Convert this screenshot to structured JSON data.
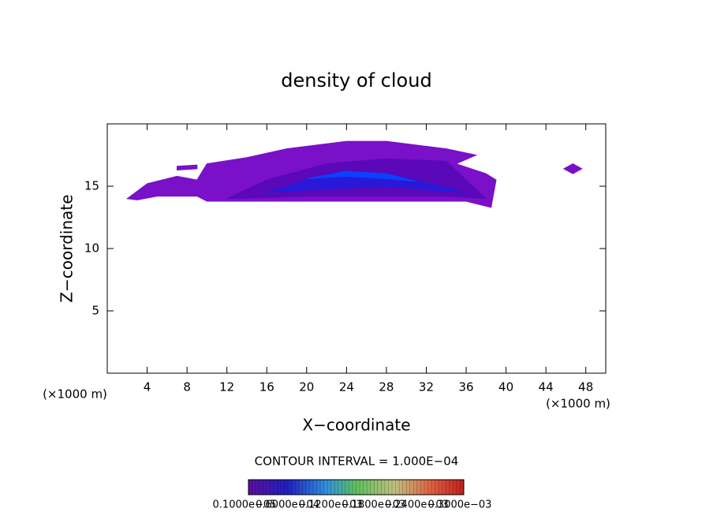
{
  "chart_data": {
    "type": "contour",
    "title": "density of cloud",
    "xlabel": "X−coordinate",
    "ylabel": "Z−coordinate",
    "x_unit_left": "(×1000 m)",
    "x_unit_right": "(×1000 m)",
    "xlim": [
      0,
      50
    ],
    "ylim": [
      0,
      20
    ],
    "xticks": [
      4,
      8,
      12,
      16,
      20,
      24,
      28,
      32,
      36,
      40,
      44,
      48
    ],
    "yticks": [
      5,
      10,
      15
    ],
    "contour_interval": "CONTOUR INTERVAL = 1.000E−04",
    "colorbar_labels": [
      "0.1000e−05",
      "0.6000e−04",
      "0.1200e−03",
      "0.1800e−03",
      "0.2400e−03",
      "0.3000e−03"
    ],
    "regions": [
      {
        "color": "#7a10c8",
        "x": [
          2,
          4,
          7,
          9,
          10,
          14,
          18,
          24,
          28,
          34,
          37,
          35,
          38,
          39,
          38.5,
          36,
          30,
          20,
          10,
          9,
          5,
          3
        ],
        "z": [
          14,
          15.2,
          15.8,
          15.5,
          16.8,
          17.3,
          18,
          18.6,
          18.6,
          18,
          17.5,
          16.8,
          16,
          15.5,
          13.3,
          13.8,
          13.8,
          13.8,
          13.8,
          14.2,
          14.2,
          13.9
        ]
      },
      {
        "color": "#7a10c8",
        "x": [
          7,
          9,
          9,
          7
        ],
        "z": [
          16.3,
          16.4,
          16.7,
          16.6
        ]
      },
      {
        "color": "#7a10c8",
        "x": [
          45.8,
          46.7,
          47.6,
          46.7
        ],
        "z": [
          16.4,
          16.0,
          16.4,
          16.8
        ]
      },
      {
        "color": "#5a08b8",
        "x": [
          12,
          16,
          22,
          28,
          34,
          36,
          38,
          34,
          20
        ],
        "z": [
          14,
          15.5,
          16.8,
          17.2,
          17,
          15.5,
          14,
          14.2,
          14.2
        ]
      },
      {
        "color": "#2a18d8",
        "x": [
          16,
          20,
          24,
          28,
          32,
          36,
          34,
          28,
          20
        ],
        "z": [
          14.5,
          15.5,
          16,
          16,
          15.3,
          14.5,
          14.6,
          15,
          14.7
        ]
      },
      {
        "color": "#0a40ff",
        "x": [
          20,
          24,
          28,
          31,
          28,
          24
        ],
        "z": [
          15.6,
          16.2,
          16,
          15.4,
          15.6,
          15.8
        ]
      }
    ]
  }
}
